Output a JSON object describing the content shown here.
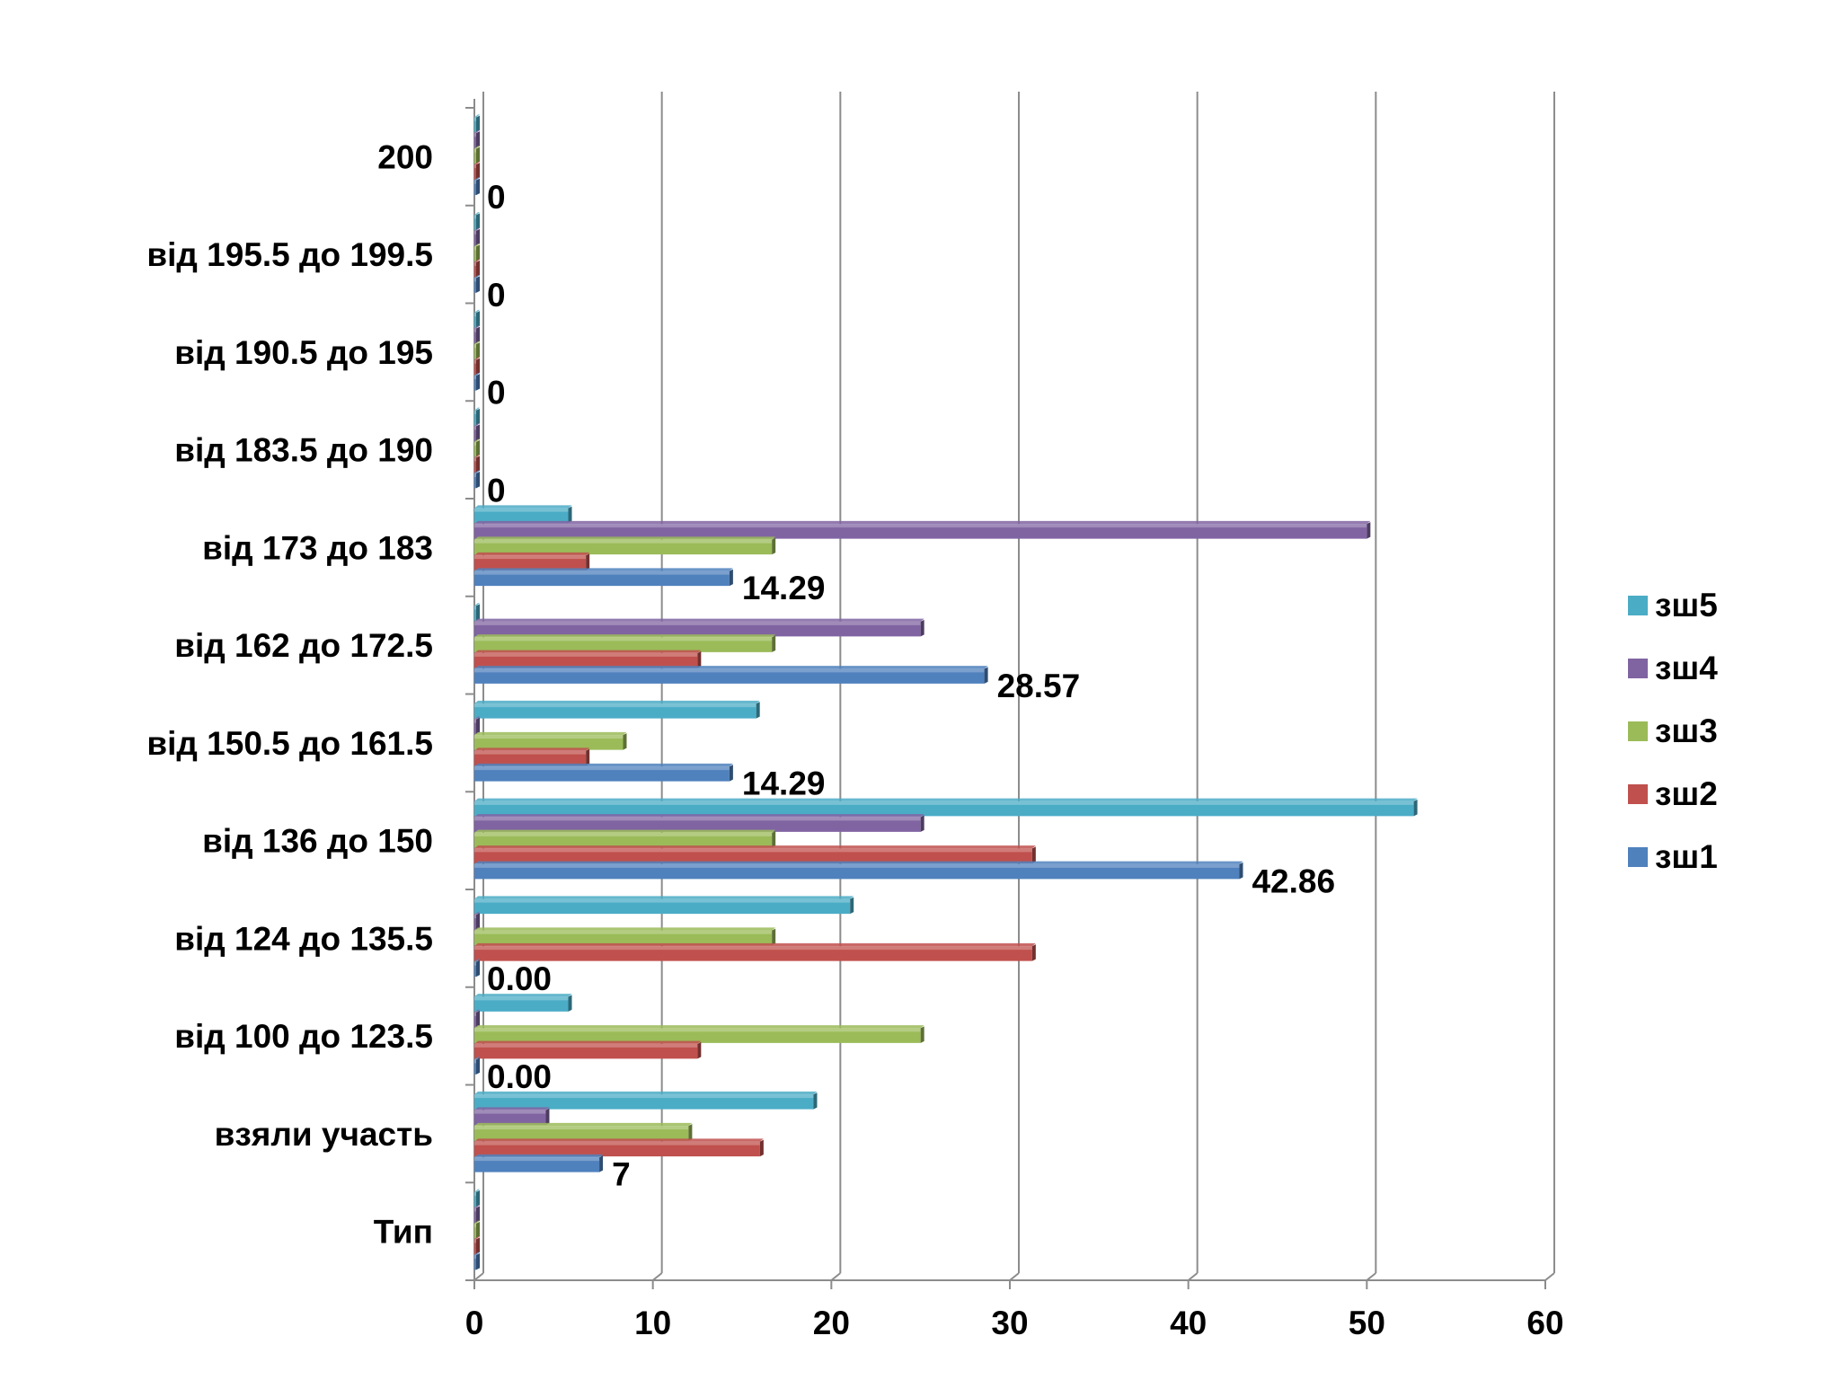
{
  "chart_data": {
    "type": "bar",
    "orientation": "horizontal",
    "title": "",
    "xlabel": "",
    "ylabel": "",
    "xlim": [
      0,
      60
    ],
    "x_ticks": [
      "0",
      "10",
      "20",
      "30",
      "40",
      "50",
      "60"
    ],
    "grid": "vertical",
    "legend_position": "right",
    "categories": [
      "Тип",
      "взяли участь",
      "від 100 до 123.5",
      "від 124 до 135.5",
      "від 136 до 150",
      "від 150.5 до 161.5",
      "від 162 до 172.5",
      "від 173 до 183",
      "від 183.5 до 190",
      "від 190.5 до 195",
      "від 195.5 до 199.5",
      "200"
    ],
    "series": [
      {
        "name": "зш1",
        "color": "#4F81BD",
        "values": [
          0,
          7,
          0,
          0,
          42.86,
          14.29,
          28.57,
          14.29,
          0,
          0,
          0,
          0
        ]
      },
      {
        "name": "зш2",
        "color": "#C0504D",
        "values": [
          0,
          16,
          12.5,
          31.25,
          31.25,
          6.25,
          12.5,
          6.25,
          0,
          0,
          0,
          0
        ]
      },
      {
        "name": "зш3",
        "color": "#9BBB59",
        "values": [
          0,
          12,
          25,
          16.67,
          16.67,
          8.33,
          16.67,
          16.67,
          0,
          0,
          0,
          0
        ]
      },
      {
        "name": "зш4",
        "color": "#8064A2",
        "values": [
          0,
          4,
          0,
          0,
          25,
          0,
          25,
          50,
          0,
          0,
          0,
          0
        ]
      },
      {
        "name": "зш5",
        "color": "#4BACC6",
        "values": [
          0,
          19,
          5.26,
          21.05,
          52.63,
          15.79,
          0,
          5.26,
          0,
          0,
          0,
          0
        ]
      }
    ],
    "data_labels": [
      "",
      "7",
      "0.00",
      "0.00",
      "42.86",
      "14.29",
      "28.57",
      "14.29",
      "0",
      "0",
      "0",
      "0"
    ]
  }
}
